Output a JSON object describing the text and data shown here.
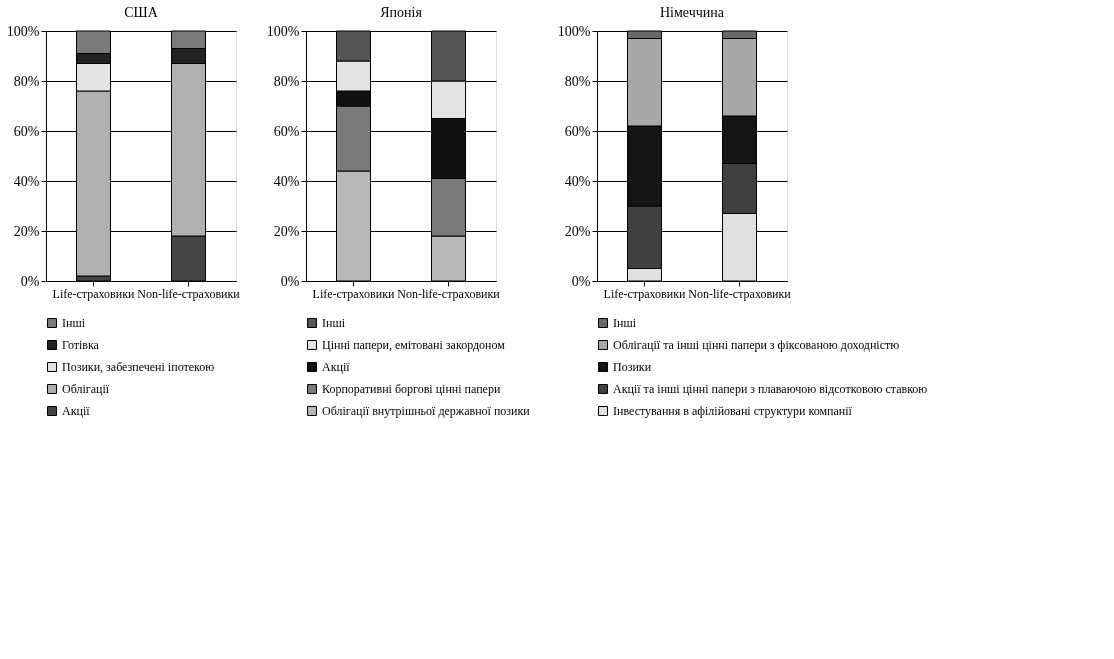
{
  "chart_data": [
    {
      "type": "bar",
      "title": "США",
      "categories": [
        "Life-страховики",
        "Non-life-страховики"
      ],
      "stacked": true,
      "ylim": [
        0,
        100
      ],
      "yticks": [
        {
          "value": 0,
          "label": "0%"
        },
        {
          "value": 20,
          "label": "20%"
        },
        {
          "value": 40,
          "label": "40%"
        },
        {
          "value": 60,
          "label": "60%"
        },
        {
          "value": 80,
          "label": "80%"
        },
        {
          "value": 100,
          "label": "100%"
        }
      ],
      "grid": "y",
      "legend": "bottom",
      "series": [
        {
          "name": "Акції",
          "color": "#444444",
          "values": [
            2,
            18
          ]
        },
        {
          "name": "Облігації",
          "color": "#b0b0b0",
          "values": [
            74,
            69
          ]
        },
        {
          "name": "Позики, забезпечені іпотекою",
          "color": "#e4e4e4",
          "values": [
            11,
            0
          ]
        },
        {
          "name": "Готівка",
          "color": "#222222",
          "values": [
            4,
            6
          ]
        },
        {
          "name": "Інші",
          "color": "#7a7a7a",
          "values": [
            9,
            7
          ]
        }
      ]
    },
    {
      "type": "bar",
      "title": "Японія",
      "categories": [
        "Life-страховики",
        "Non-life-страховики"
      ],
      "stacked": true,
      "ylim": [
        0,
        100
      ],
      "yticks": [
        {
          "value": 0,
          "label": "0%"
        },
        {
          "value": 20,
          "label": "20%"
        },
        {
          "value": 40,
          "label": "40%"
        },
        {
          "value": 60,
          "label": "60%"
        },
        {
          "value": 80,
          "label": "80%"
        },
        {
          "value": 100,
          "label": "100%"
        }
      ],
      "grid": "y",
      "legend": "bottom",
      "series": [
        {
          "name": "Облігації внутрішньої державної позики",
          "color": "#b8b8b8",
          "values": [
            44,
            18
          ]
        },
        {
          "name": "Корпоративні боргові цінні папери",
          "color": "#7a7a7a",
          "values": [
            26,
            23
          ]
        },
        {
          "name": "Акції",
          "color": "#111111",
          "values": [
            6,
            24
          ]
        },
        {
          "name": "Цінні папери, емітовані закордоном",
          "color": "#e4e4e4",
          "values": [
            12,
            15
          ]
        },
        {
          "name": "Інші",
          "color": "#555555",
          "values": [
            12,
            20
          ]
        }
      ]
    },
    {
      "type": "bar",
      "title": "Німеччина",
      "categories": [
        "Life-страховики",
        "Non-life-страховики"
      ],
      "stacked": true,
      "ylim": [
        0,
        100
      ],
      "yticks": [
        {
          "value": 0,
          "label": "0%"
        },
        {
          "value": 20,
          "label": "20%"
        },
        {
          "value": 40,
          "label": "40%"
        },
        {
          "value": 60,
          "label": "60%"
        },
        {
          "value": 80,
          "label": "80%"
        },
        {
          "value": 100,
          "label": "100%"
        }
      ],
      "grid": "y",
      "legend": "bottom",
      "series": [
        {
          "name": "Інвестування в афілійовані структури компанії",
          "color": "#e0e0e0",
          "values": [
            5,
            27
          ]
        },
        {
          "name": "Акції та інші цінні папери з плаваючою відсотковою ставкою",
          "color": "#404040",
          "values": [
            25,
            20
          ]
        },
        {
          "name": "Позики",
          "color": "#151515",
          "values": [
            32,
            19
          ]
        },
        {
          "name": "Облігації та інші цінні папери з фіксованою доходністю",
          "color": "#a8a8a8",
          "values": [
            35,
            31
          ]
        },
        {
          "name": "Інші",
          "color": "#6a6a6a",
          "values": [
            3,
            3
          ]
        }
      ]
    }
  ]
}
